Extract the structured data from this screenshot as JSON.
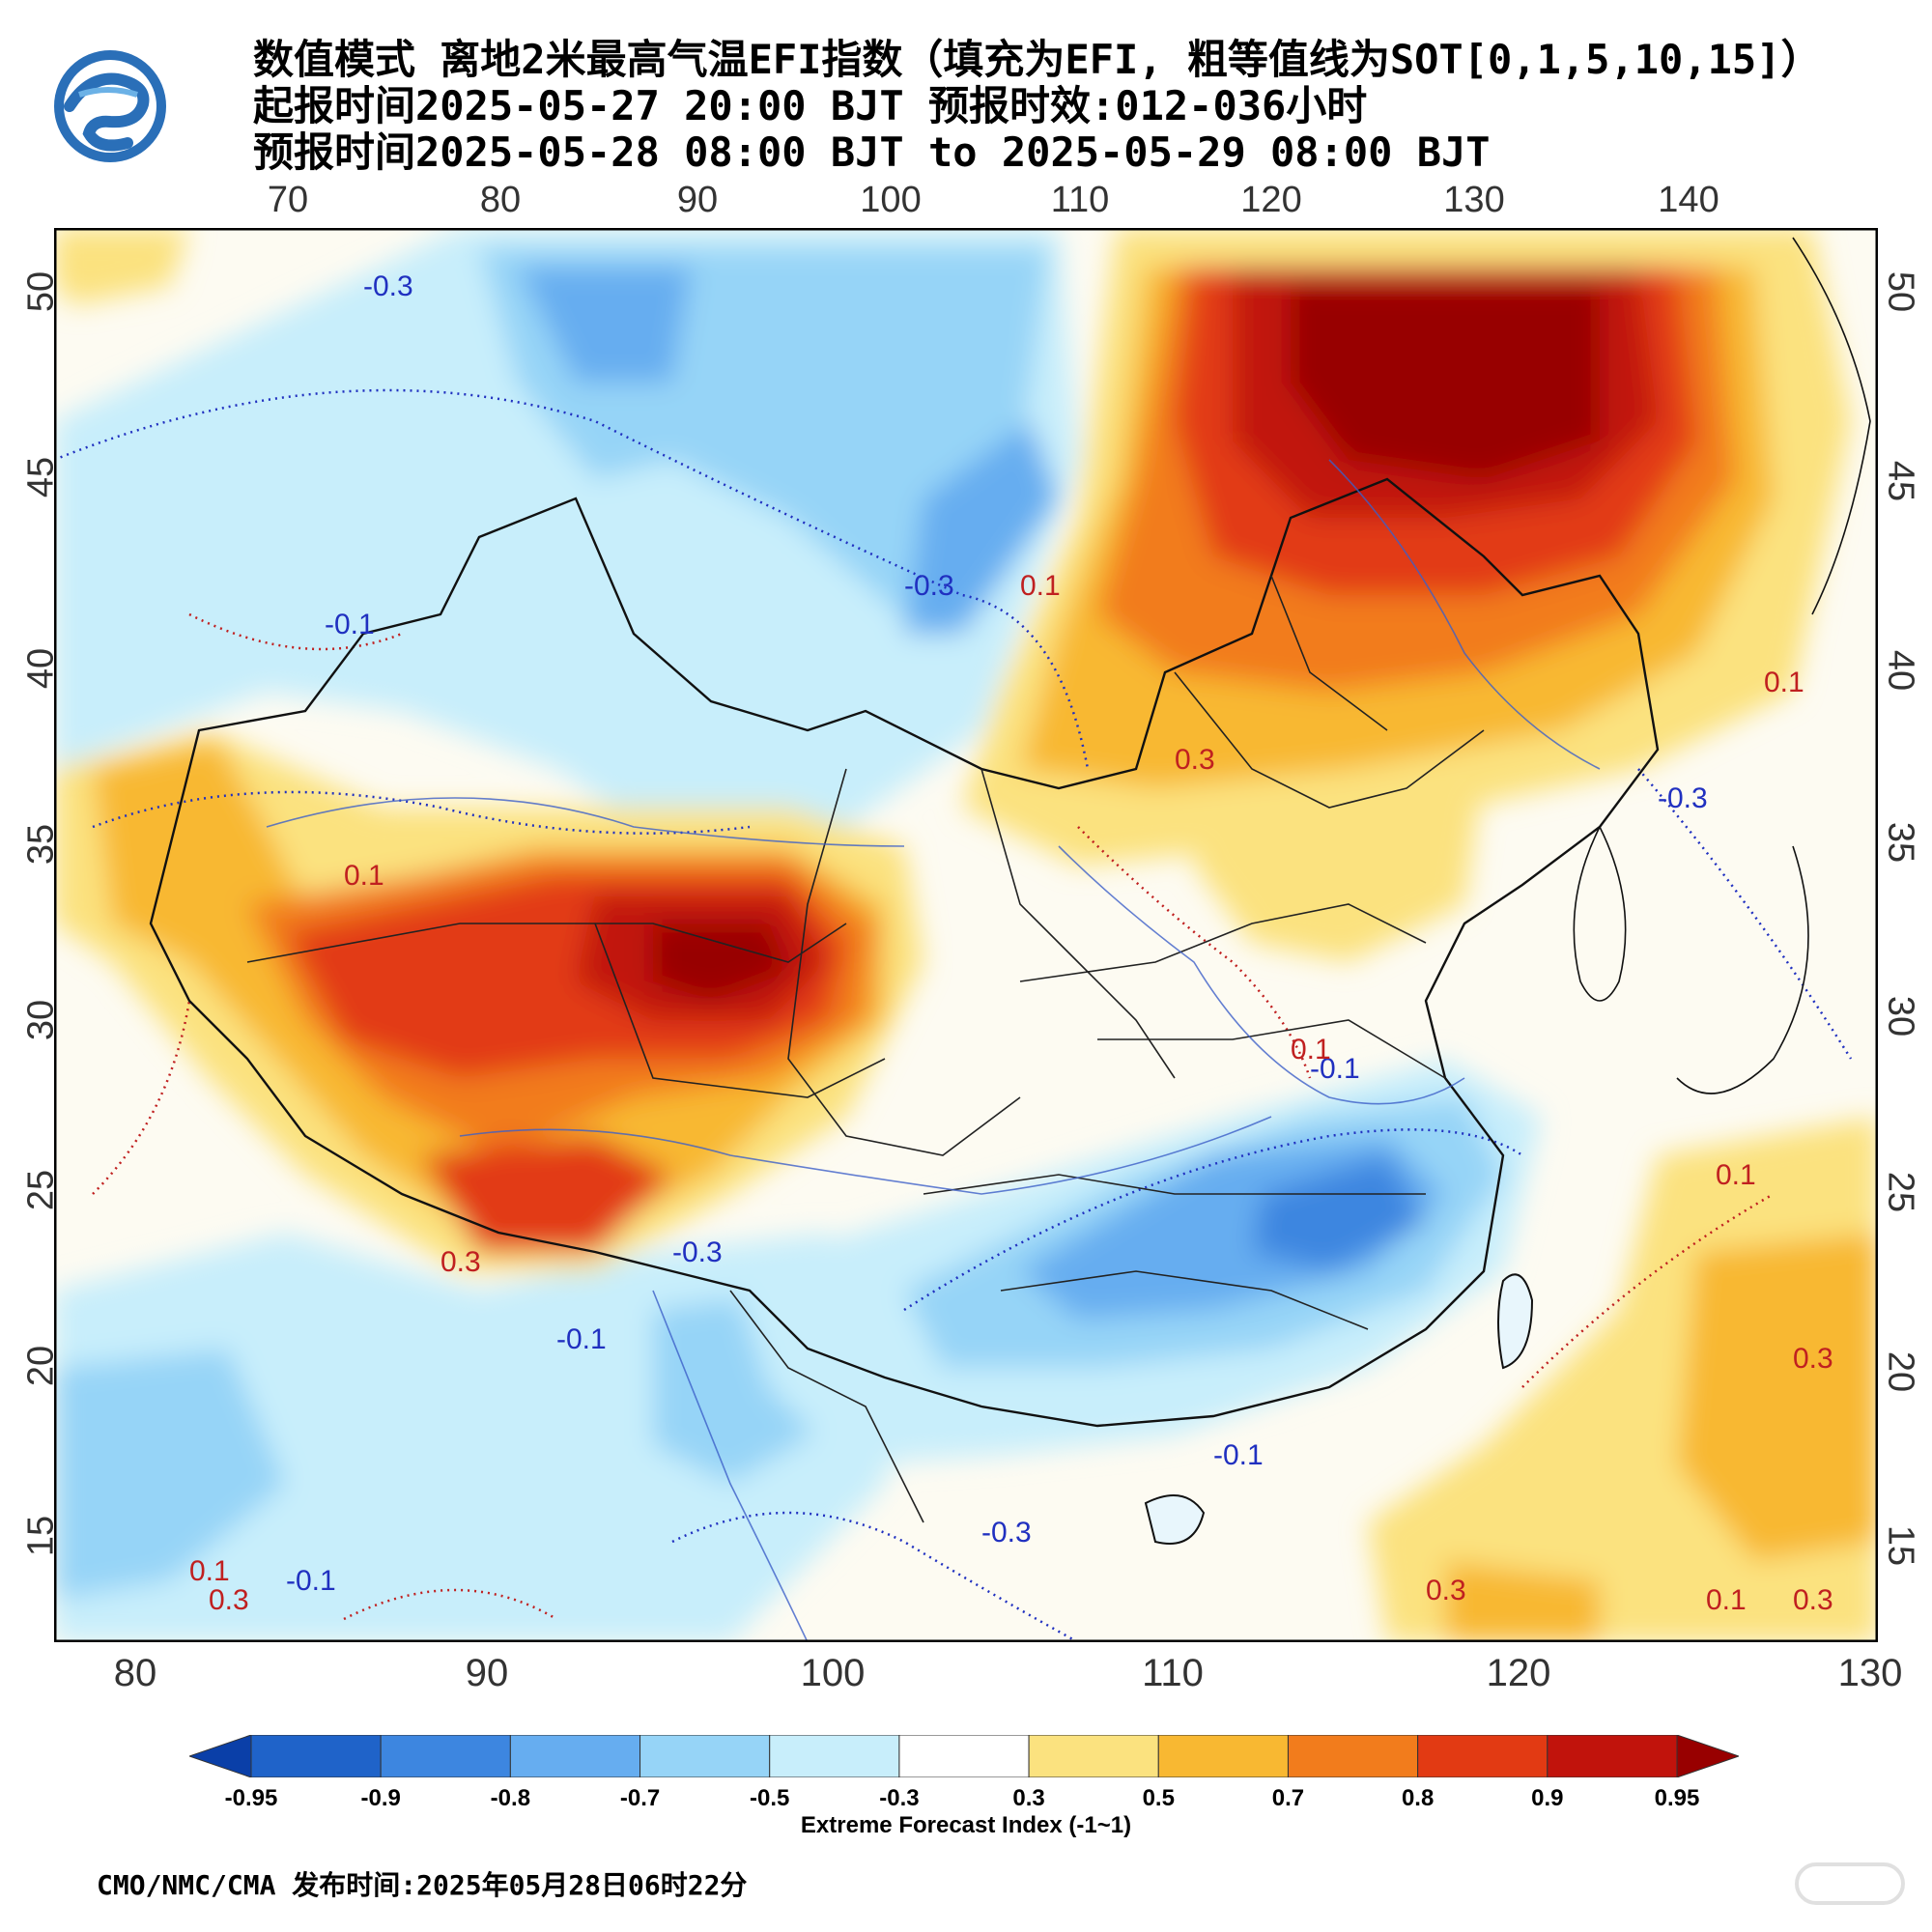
{
  "title": {
    "line1": "数值模式 离地2米最高气温EFI指数（填充为EFI, 粗等值线为SOT[0,1,5,10,15]）",
    "line2": "起报时间2025-05-27 20:00 BJT 预报时效:012-036小时",
    "line3": "预报时间2025-05-28 08:00 BJT to 2025-05-29 08:00 BJT"
  },
  "axes": {
    "top_lon": [
      "70",
      "80",
      "90",
      "100",
      "110",
      "120",
      "130",
      "140"
    ],
    "bottom_lon": [
      "80",
      "90",
      "100",
      "110",
      "120",
      "130"
    ],
    "lat": [
      "50",
      "45",
      "40",
      "35",
      "30",
      "25",
      "20",
      "15"
    ]
  },
  "contour_labels": [
    "-0.3",
    "-0.1",
    "0.1",
    "0.3"
  ],
  "colorbar": {
    "levels": [
      "-0.95",
      "-0.9",
      "-0.8",
      "-0.7",
      "-0.5",
      "-0.3",
      "0.3",
      "0.5",
      "0.7",
      "0.8",
      "0.9",
      "0.95"
    ],
    "colors": [
      "#0a3fa8",
      "#1f63c9",
      "#3d86e0",
      "#66adf0",
      "#96d4f7",
      "#c8eefb",
      "#ffffff",
      "#fbe27f",
      "#f8b832",
      "#f27c1c",
      "#e23a13",
      "#c1130c",
      "#980000"
    ],
    "title": "Extreme Forecast Index (-1~1)"
  },
  "footer": "CMO/NMC/CMA 发布时间:2025年05月28日06时22分"
}
